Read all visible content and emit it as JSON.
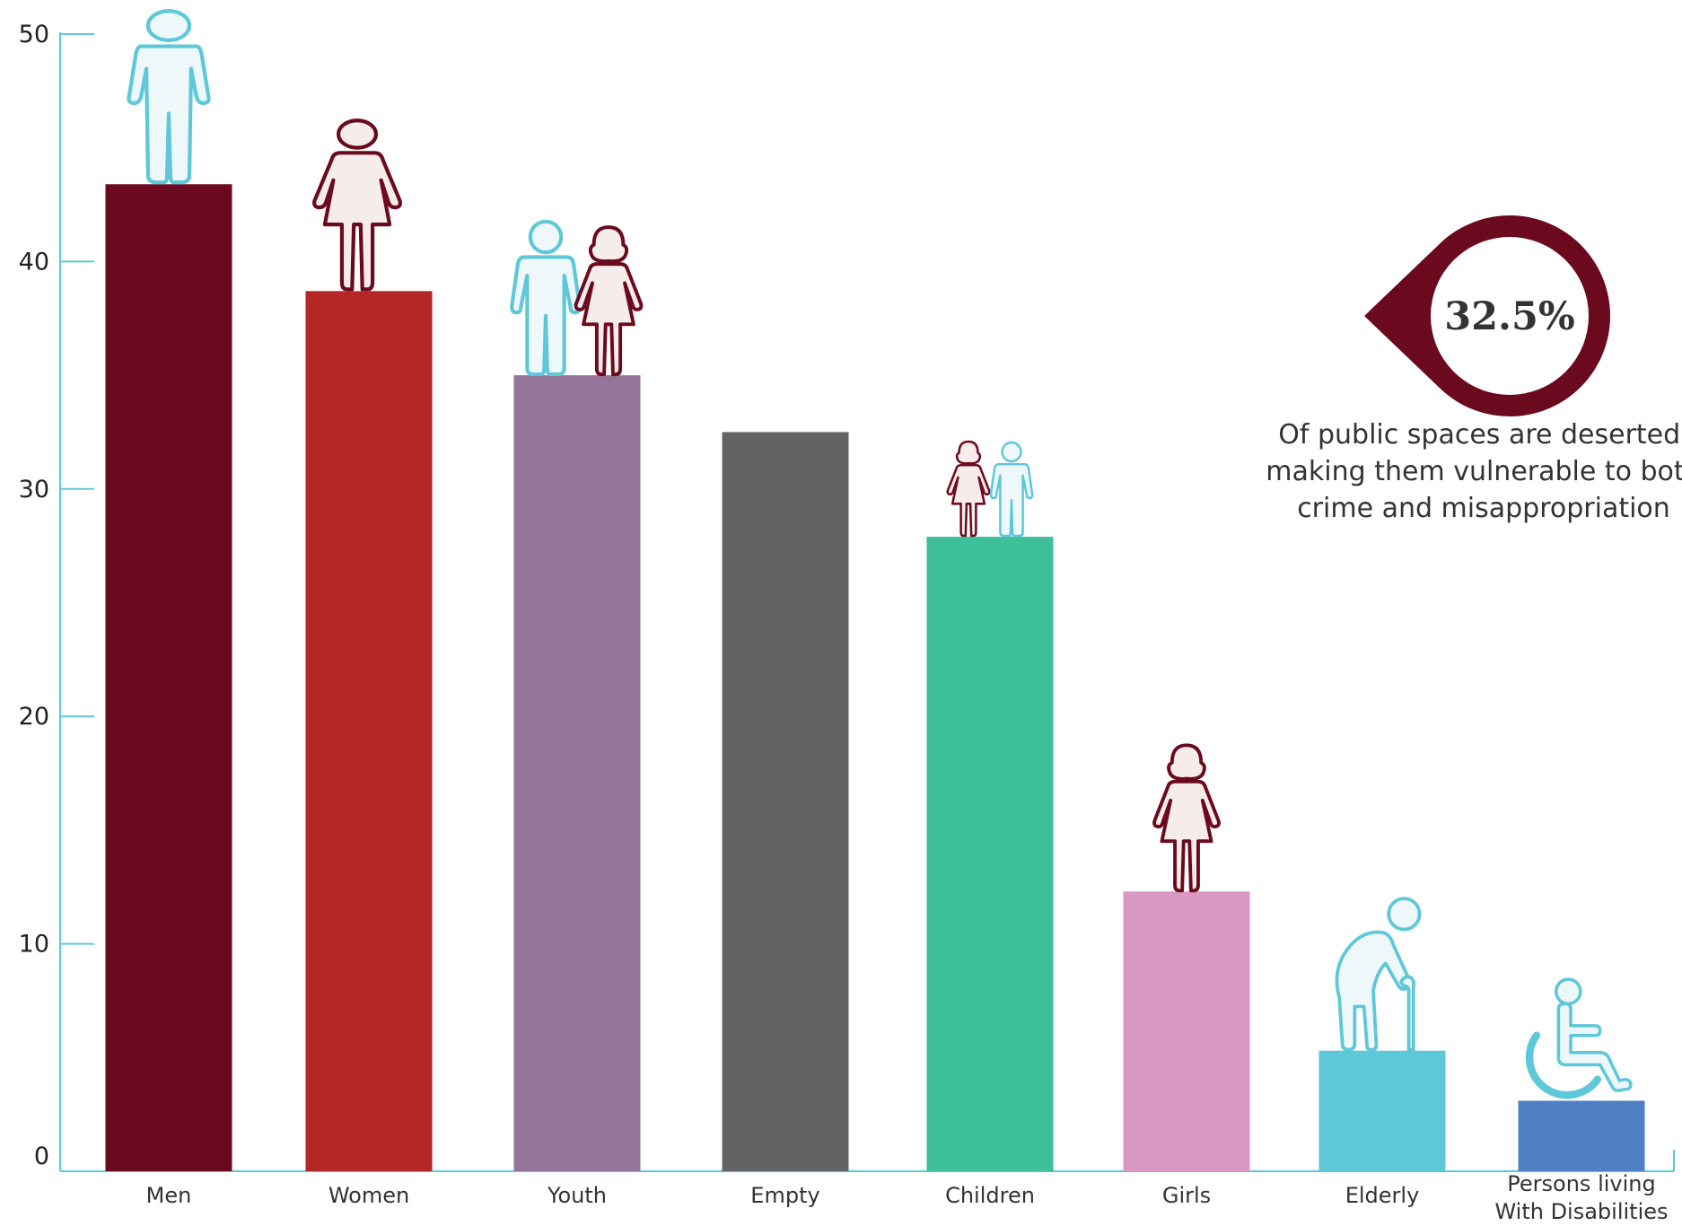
{
  "chart_data": {
    "type": "bar",
    "categories": [
      "Men",
      "Women",
      "Youth",
      "Empty",
      "Children",
      "Girls",
      "Elderly",
      "Persons living With Disabilities"
    ],
    "category_lines": [
      [
        "Men"
      ],
      [
        "Women"
      ],
      [
        "Youth"
      ],
      [
        "Empty"
      ],
      [
        "Children"
      ],
      [
        "Girls"
      ],
      [
        "Elderly"
      ],
      [
        "Persons living",
        "With Disabilities"
      ]
    ],
    "values": [
      43.4,
      38.7,
      35.0,
      32.5,
      27.9,
      12.3,
      5.3,
      3.1
    ],
    "bar_colors": [
      "#6b0a1f",
      "#b52627",
      "#957499",
      "#636366",
      "#3dbf97",
      "#d998c3",
      "#5ec8d8",
      "#4f80c4"
    ],
    "icons": [
      [
        "man-icon"
      ],
      [
        "woman-icon"
      ],
      [
        "boy-icon",
        "girl-icon"
      ],
      [],
      [
        "girl-icon",
        "boy-icon"
      ],
      [
        "girl-icon"
      ],
      [
        "elderly-icon"
      ],
      [
        "wheelchair-icon"
      ]
    ],
    "ylim": [
      0,
      50
    ],
    "yticks": [
      0,
      10,
      20,
      30,
      40,
      50
    ],
    "axis_color": "#5ec8d8",
    "title": "",
    "xlabel": "",
    "ylabel": "",
    "grid": false
  },
  "callout": {
    "value": "32.5%",
    "text_lines": [
      "Of public spaces are deserted,",
      "making them vulnerable to both",
      "crime and misappropriation"
    ],
    "color": "#6b0a1f"
  },
  "icon_colors": {
    "male_stroke": "#5ec8d8",
    "male_fill": "#eef8fa",
    "female_stroke": "#6b0a1f",
    "female_fill": "#f7ecec"
  }
}
